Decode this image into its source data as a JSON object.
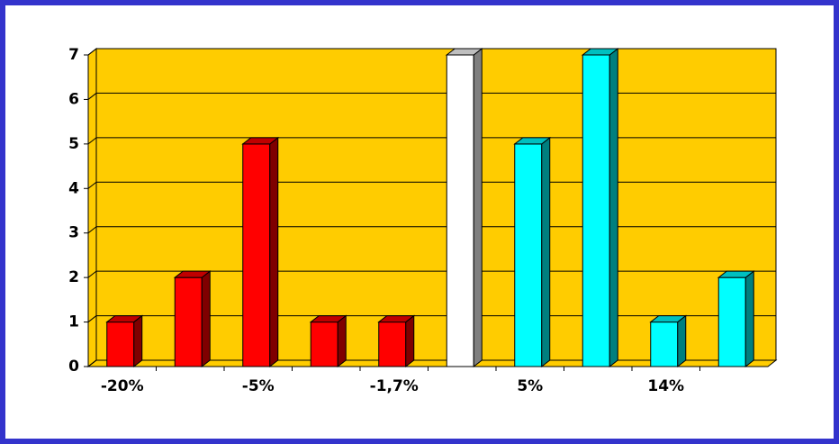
{
  "chart_data": {
    "type": "bar3d",
    "categories": [
      "-20%",
      null,
      "-5%",
      null,
      "-1,7%",
      null,
      "5%",
      null,
      "14%",
      null
    ],
    "values": [
      1,
      2,
      5,
      1,
      1,
      7,
      5,
      7,
      1,
      2
    ],
    "colors": [
      "#ff0000",
      "#ff0000",
      "#ff0000",
      "#ff0000",
      "#ff0000",
      "#ffffff",
      "#00ffff",
      "#00ffff",
      "#00ffff",
      "#00ffff"
    ],
    "background": "#ffcc00",
    "ylim": [
      0,
      7
    ],
    "yticks": [
      0,
      1,
      2,
      3,
      4,
      5,
      6,
      7
    ],
    "grid": true
  }
}
